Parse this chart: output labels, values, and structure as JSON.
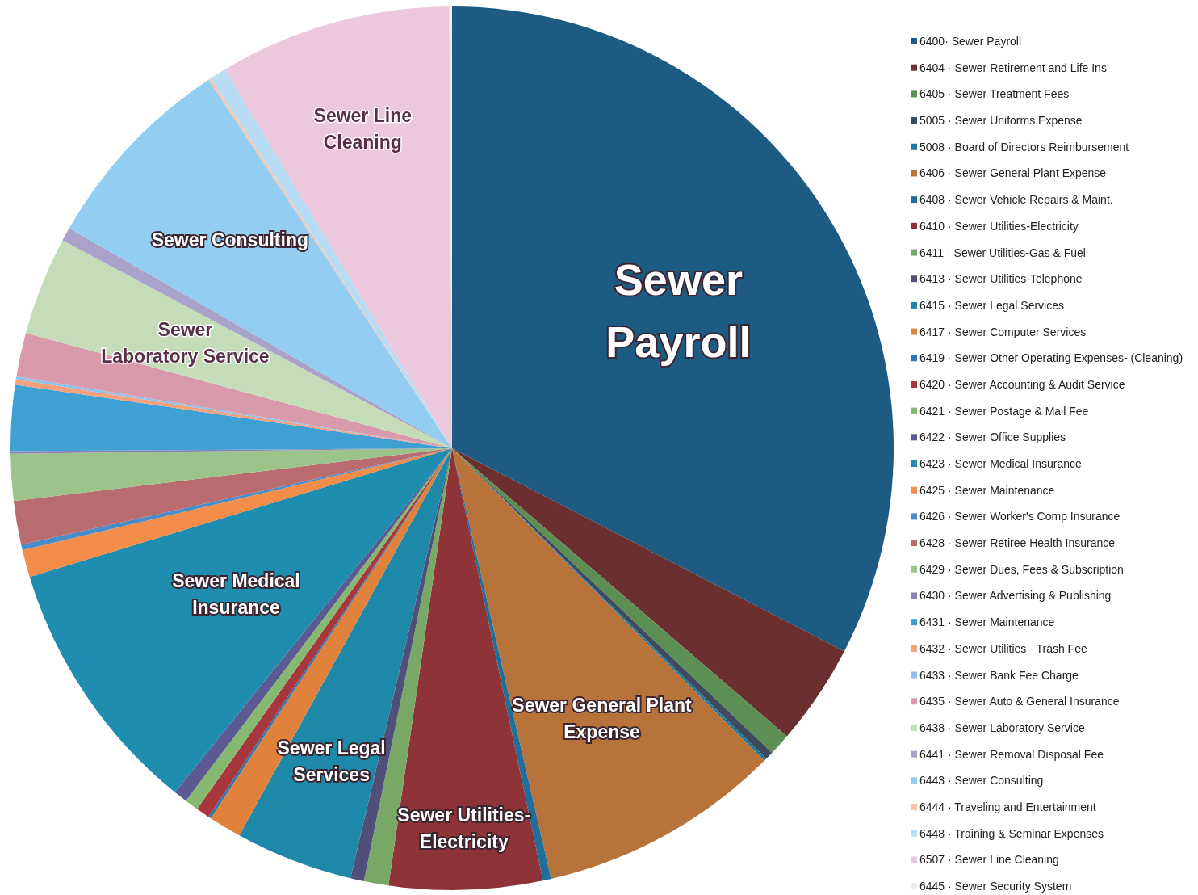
{
  "chart_data": {
    "type": "pie",
    "categories": [
      "6400· Sewer Payroll",
      "6404 · Sewer Retirement and Life Ins",
      "6405 · Sewer Treatment Fees",
      "5005 · Sewer Uniforms Expense",
      "5008 · Board of Directors Reimbursement",
      "6406 · Sewer General Plant Expense",
      "6408 · Sewer Vehicle Repairs & Maint.",
      "6410 · Sewer Utilities-Electricity",
      "6411 · Sewer Utilities-Gas & Fuel",
      "6413 · Sewer Utilities-Telephone",
      "6415 · Sewer Legal Services",
      "6417 · Sewer Computer Services",
      "6419 · Sewer Other Operating Expenses- (Cleaning)",
      "6420 · Sewer Accounting & Audit Service",
      "6421 · Sewer Postage & Mail Fee",
      "6422 · Sewer Office Supplies",
      "6423 · Sewer Medical Insurance",
      "6425 · Sewer Maintenance",
      "6426 · Sewer Worker's Comp Insurance",
      "6428 · Sewer Retiree Health Insurance",
      "6429 · Sewer Dues, Fees & Subscription",
      "6430 · Sewer Advertising & Publishing",
      "6431 · Sewer Maintenance",
      "6432 · Sewer Utilities - Trash Fee",
      "6433 · Sewer Bank Fee Charge",
      "6435 · Sewer Auto & General Insurance",
      "6438 · Sewer Laboratory Service",
      "6441 · Sewer Removal Disposal Fee",
      "6443 · Sewer Consulting",
      "6444 · Traveling and Entertainment",
      "6448 · Training & Seminar Expenses",
      "6507 · Sewer Line Cleaning",
      "6445 · Sewer Security System"
    ],
    "values": [
      32.6,
      3.7,
      0.8,
      0.3,
      0.1,
      8.9,
      0.3,
      5.6,
      0.9,
      0.5,
      4.3,
      1.2,
      0.1,
      0.5,
      0.5,
      0.5,
      9.5,
      1.0,
      0.2,
      1.6,
      1.7,
      0.1,
      2.4,
      0.2,
      0.1,
      1.6,
      3.6,
      0.5,
      7.4,
      0.1,
      0.6,
      8.5,
      0.1
    ],
    "colors": [
      "#1e5b82",
      "#6b2f30",
      "#5d8f55",
      "#3e4a5e",
      "#1f7aa0",
      "#b8733a",
      "#1f6f9a",
      "#8e3438",
      "#79a866",
      "#4f4f7a",
      "#1e88a8",
      "#e0823c",
      "#2a7ab5",
      "#a8373d",
      "#86b96f",
      "#5c5a92",
      "#1f8db0",
      "#f48c4a",
      "#4a8cc8",
      "#b86c70",
      "#9cc48a",
      "#8a82b5",
      "#3fa1d3",
      "#f4a17f",
      "#8fc0ee",
      "#d99aab",
      "#c5dcb8",
      "#a9a3cb",
      "#93cdf2",
      "#f6c6ae",
      "#b9dcf5",
      "#ecc8dc",
      "#eeeeee"
    ],
    "value_labels": [
      "Sewer Payroll",
      null,
      null,
      null,
      null,
      "Sewer General Plant Expense",
      null,
      "Sewer Utilities-Electricity",
      null,
      null,
      "Sewer Legal Services",
      null,
      null,
      null,
      null,
      null,
      "Sewer Medical Insurance",
      null,
      null,
      null,
      null,
      null,
      null,
      null,
      null,
      null,
      "Sewer Laboratory Service",
      null,
      "Sewer Consulting",
      null,
      null,
      "Sewer Line Cleaning",
      null
    ],
    "legend": "right"
  }
}
